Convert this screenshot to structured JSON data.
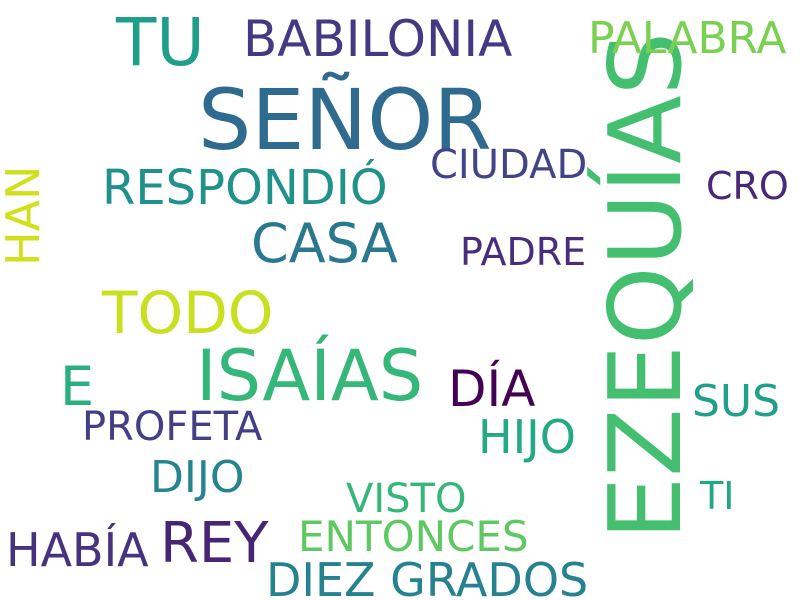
{
  "words": [
    {
      "id": "ezequias",
      "text": "EZEQUÍAS",
      "color": "#44bf70"
    },
    {
      "id": "senor",
      "text": "SEÑOR",
      "color": "#2f6b8e"
    },
    {
      "id": "isaias",
      "text": "ISAÍAS",
      "color": "#35b779"
    },
    {
      "id": "tu",
      "text": "TU",
      "color": "#1f9e89"
    },
    {
      "id": "babilonia",
      "text": "BABILONIA",
      "color": "#443983"
    },
    {
      "id": "palabra",
      "text": "PALABRA",
      "color": "#7ad151"
    },
    {
      "id": "respondio",
      "text": "RESPONDIÓ",
      "color": "#21918c"
    },
    {
      "id": "casa",
      "text": "CASA",
      "color": "#2a788e"
    },
    {
      "id": "ciudad",
      "text": "CIUDAD",
      "color": "#414487"
    },
    {
      "id": "cro",
      "text": "CRO",
      "color": "#482878"
    },
    {
      "id": "han",
      "text": "HAN",
      "color": "#d0e11c"
    },
    {
      "id": "padre",
      "text": "PADRE",
      "color": "#472d7b"
    },
    {
      "id": "todo",
      "text": "TODO",
      "color": "#c8e020"
    },
    {
      "id": "e",
      "text": "E",
      "color": "#2ab07f"
    },
    {
      "id": "dia",
      "text": "DÍA",
      "color": "#440154"
    },
    {
      "id": "sus",
      "text": "SUS",
      "color": "#1fa088"
    },
    {
      "id": "profeta",
      "text": "PROFETA",
      "color": "#433e85"
    },
    {
      "id": "hijo",
      "text": "HIJO",
      "color": "#23a983"
    },
    {
      "id": "dijo",
      "text": "DIJO",
      "color": "#25848e"
    },
    {
      "id": "visto",
      "text": "VISTO",
      "color": "#35b779"
    },
    {
      "id": "ti",
      "text": "TI",
      "color": "#22a884"
    },
    {
      "id": "habia",
      "text": "HABÍA",
      "color": "#46327e"
    },
    {
      "id": "rey",
      "text": "REY",
      "color": "#482475"
    },
    {
      "id": "entonces",
      "text": "ENTONCES",
      "color": "#5ec962"
    },
    {
      "id": "diez-grados",
      "text": "DIEZ GRADOS",
      "color": "#26828e"
    }
  ]
}
